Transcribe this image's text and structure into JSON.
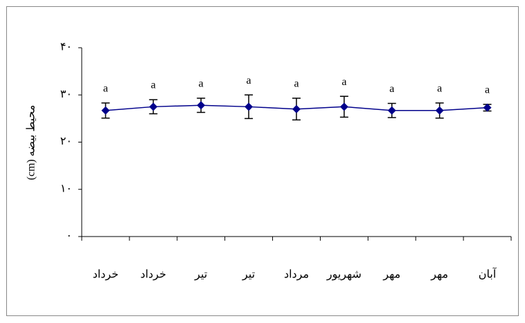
{
  "chart_data": {
    "type": "line",
    "y_label": "محیط بیضه (cm)",
    "categories": [
      "خرداد",
      "خرداد",
      "تیر",
      "تیر",
      "مرداد",
      "شهریور",
      "مهر",
      "مهر",
      "آبان"
    ],
    "series": [
      {
        "color": "#00008b",
        "values": [
          26.7,
          27.5,
          27.8,
          27.5,
          27.0,
          27.5,
          26.7,
          26.7,
          27.3
        ],
        "errors": [
          1.6,
          1.5,
          1.5,
          2.5,
          2.3,
          2.2,
          1.5,
          1.6,
          0.7
        ]
      }
    ],
    "annotations": [
      "a",
      "a",
      "a",
      "a",
      "a",
      "a",
      "a",
      "a",
      "a"
    ],
    "ylim": [
      0,
      40
    ],
    "yticks": [
      {
        "value": 0,
        "label": "۰"
      },
      {
        "value": 10,
        "label": "۱۰"
      },
      {
        "value": 20,
        "label": "۲۰"
      },
      {
        "value": 30,
        "label": "۳۰"
      },
      {
        "value": 40,
        "label": "۴۰"
      }
    ]
  }
}
